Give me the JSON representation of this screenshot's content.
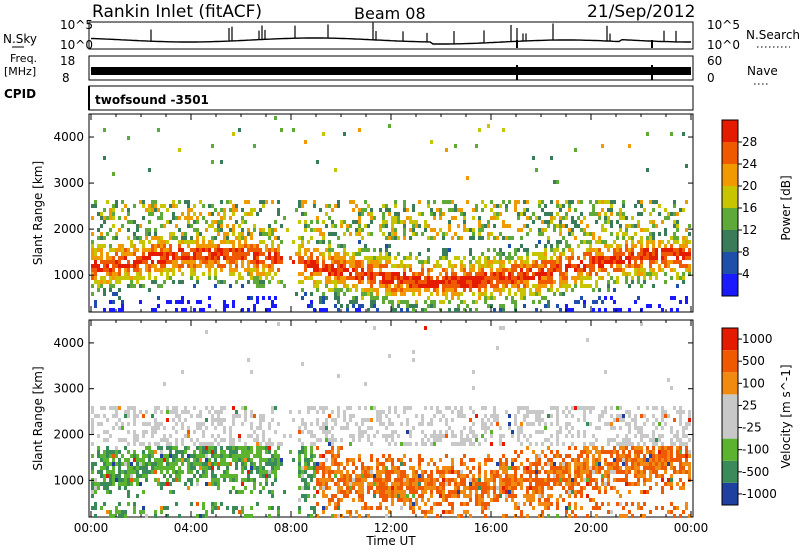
{
  "header": {
    "station": "Rankin Inlet (fitACF)",
    "beam": "Beam 08",
    "date": "21/Sep/2012"
  },
  "strip_labels": {
    "nsky": "N.Sky",
    "nsky_top": "10^5",
    "nsky_bottom": "10^0",
    "freq_line1": "Freq.",
    "freq_line2": "[MHz]",
    "freq_top": "18",
    "freq_bottom": "8",
    "cpid": "CPID",
    "nsearch": "N.Search",
    "nsearch_top": "10^5",
    "nsearch_bottom": "10^0",
    "nave": "Nave",
    "nave_top": "60",
    "nave_bottom": "0",
    "cpid_value": "twofsound  -3501"
  },
  "colors": {
    "power": [
      "#1a1aff",
      "#1f4fa8",
      "#3a7c5a",
      "#5fa83a",
      "#c7c400",
      "#f09a00",
      "#ef5a00",
      "#e51b00"
    ],
    "velocity": [
      "#e51b00",
      "#ef5a00",
      "#f08a10",
      "#c8c8c8",
      "#c8c8c8",
      "#5bb330",
      "#3a8a5a",
      "#2040a0"
    ]
  },
  "chart_data": [
    {
      "type": "heatmap",
      "title": "",
      "ylabel": "Slant Range [km]",
      "xlabel": "",
      "x_ticks": [
        "00:00",
        "04:00",
        "08:00",
        "12:00",
        "16:00",
        "20:00",
        "00:00"
      ],
      "y_ticks": [
        1000,
        2000,
        3000,
        4000
      ],
      "ylim": [
        200,
        4500
      ],
      "xlim_hours": [
        0,
        24
      ],
      "colorbar": {
        "label": "Power [dB]",
        "ticks": [
          4,
          8,
          12,
          16,
          20,
          24,
          28
        ],
        "range": [
          0,
          32
        ]
      }
    },
    {
      "type": "heatmap",
      "title": "",
      "ylabel": "Slant Range [km]",
      "xlabel": "Time UT",
      "x_ticks": [
        "00:00",
        "04:00",
        "08:00",
        "12:00",
        "16:00",
        "20:00",
        "00:00"
      ],
      "y_ticks": [
        1000,
        2000,
        3000,
        4000
      ],
      "ylim": [
        200,
        4500
      ],
      "xlim_hours": [
        0,
        24
      ],
      "colorbar": {
        "label": "Velocity [m s^-1]",
        "ticks": [
          "1000",
          "500",
          "100",
          "25",
          "-25",
          "-100",
          "-500",
          "-1000"
        ]
      }
    }
  ]
}
